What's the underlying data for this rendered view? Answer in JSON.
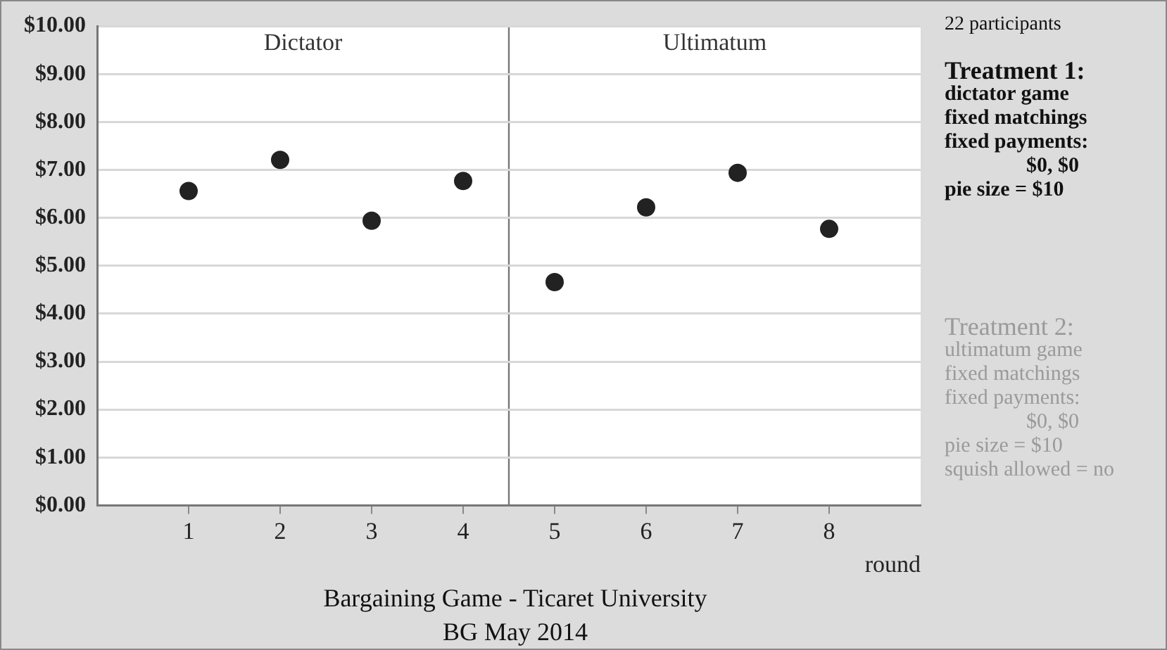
{
  "chart_data": {
    "type": "scatter",
    "xlabel": "round",
    "x": [
      1,
      2,
      3,
      4,
      5,
      6,
      7,
      8
    ],
    "series": [
      {
        "color": "#222222",
        "values": [
          6.56,
          7.21,
          5.94,
          6.77,
          4.66,
          6.22,
          6.94,
          5.77
        ]
      }
    ],
    "xlim": [
      0,
      9
    ],
    "xticks": [
      1,
      2,
      3,
      4,
      5,
      6,
      7,
      8
    ],
    "ylim": [
      0,
      10
    ],
    "yticks": [
      {
        "value": 0,
        "label": "$0.00"
      },
      {
        "value": 1,
        "label": "$1.00"
      },
      {
        "value": 2,
        "label": "$2.00"
      },
      {
        "value": 3,
        "label": "$3.00"
      },
      {
        "value": 4,
        "label": "$4.00"
      },
      {
        "value": 5,
        "label": "$5.00"
      },
      {
        "value": 6,
        "label": "$6.00"
      },
      {
        "value": 7,
        "label": "$7.00"
      },
      {
        "value": 8,
        "label": "$8.00"
      },
      {
        "value": 9,
        "label": "$9.00"
      },
      {
        "value": 10,
        "label": "$10.00"
      }
    ],
    "grid": "y",
    "marker": "circle",
    "legend": false,
    "ref_lines": [
      {
        "axis": "x",
        "value": 4.5,
        "color": "#777777"
      }
    ],
    "bands": [
      {
        "axis": "x",
        "from": 0,
        "to": 4.5,
        "label": "Dictator",
        "color": "#ffffff"
      },
      {
        "axis": "x",
        "from": 4.5,
        "to": 9,
        "label": "Ultimatum",
        "color": "#ffffff"
      }
    ],
    "annotations": [
      "Bargaining Game - Ticaret University",
      "BG May 2014",
      "22 participants",
      "Treatment 1:",
      "dictator game",
      "fixed matchings",
      "fixed payments:",
      "$0, $0",
      "pie size = $10",
      "Treatment 2:",
      "ultimatum game",
      "fixed matchings",
      "fixed payments:",
      "$0, $0",
      "pie size = $10",
      "squish allowed = no"
    ]
  }
}
